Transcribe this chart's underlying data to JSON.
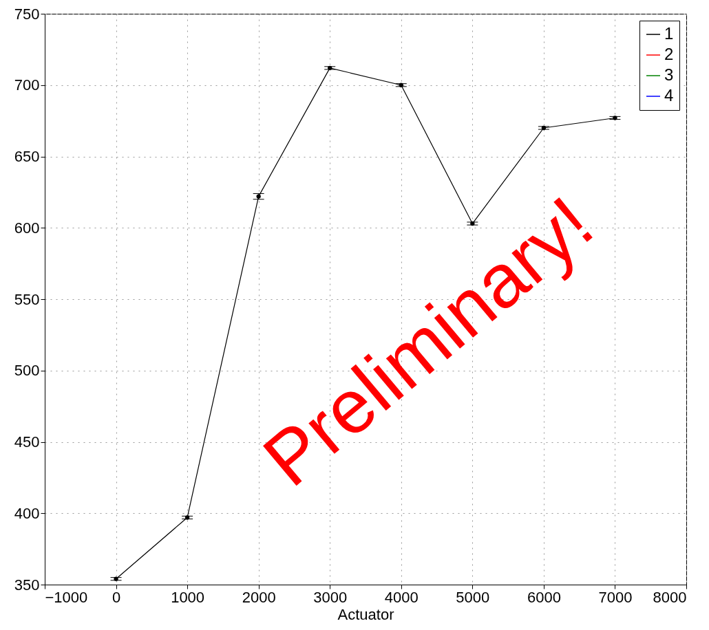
{
  "chart_data": {
    "type": "line",
    "xlabel": "Actuator",
    "x": [
      0,
      1000,
      2000,
      3000,
      4000,
      5000,
      6000,
      7000
    ],
    "series": [
      {
        "name": "1",
        "color": "#000000",
        "values": [
          354,
          397,
          622,
          712,
          700,
          603,
          670,
          677
        ],
        "errors": [
          1,
          1,
          2,
          1,
          1,
          1,
          1,
          1
        ]
      },
      {
        "name": "2",
        "color": "#ff0000",
        "values": [
          null,
          null,
          null,
          null,
          null,
          null,
          null,
          null
        ]
      },
      {
        "name": "3",
        "color": "#008000",
        "values": [
          null,
          null,
          null,
          null,
          null,
          null,
          null,
          null
        ]
      },
      {
        "name": "4",
        "color": "#0000ff",
        "values": [
          null,
          null,
          null,
          null,
          null,
          null,
          null,
          null
        ]
      }
    ],
    "xlim": [
      -1000,
      8000
    ],
    "xticks": [
      {
        "value": -1000,
        "label": "−1000"
      },
      0,
      1000,
      2000,
      3000,
      4000,
      5000,
      6000,
      7000,
      8000
    ],
    "ylim": [
      350,
      750
    ],
    "yticks": [
      350,
      400,
      450,
      500,
      550,
      600,
      650,
      700,
      750
    ],
    "grid": true,
    "legend": "top right",
    "marker": "circle",
    "line_style": "solid",
    "annotations": [
      "Preliminary!"
    ]
  }
}
